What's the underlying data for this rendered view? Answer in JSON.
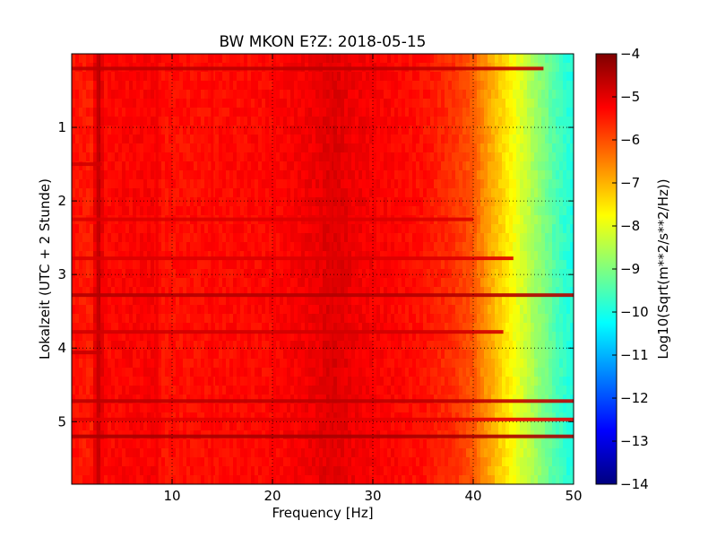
{
  "chart_data": {
    "type": "heatmap",
    "title": "BW MKON E?Z: 2018-05-15",
    "xlabel": "Frequency [Hz]",
    "ylabel": "Lokalzeit (UTC + 2 Stunde)",
    "colorbar_label": "Log10(Sqrt(m**2/s**2/Hz))",
    "xlim": [
      0,
      50
    ],
    "ylim": [
      5.85,
      0
    ],
    "x_ticks": [
      10,
      20,
      30,
      40,
      50
    ],
    "x_tick_labels": [
      "10",
      "20",
      "30",
      "40",
      "50"
    ],
    "y_ticks": [
      1,
      2,
      3,
      4,
      5
    ],
    "y_tick_labels": [
      "1",
      "2",
      "3",
      "4",
      "5"
    ],
    "colorbar_range": [
      -14,
      -4
    ],
    "colorbar_ticks": [
      -4,
      -5,
      -6,
      -7,
      -8,
      -9,
      -10,
      -11,
      -12,
      -13,
      -14
    ],
    "colorbar_tick_labels": [
      "−4",
      "−5",
      "−6",
      "−7",
      "−8",
      "−9",
      "−10",
      "−11",
      "−12",
      "−13",
      "−14"
    ],
    "colormap": "jet",
    "grid": true,
    "spectrum_profile": [
      [
        0,
        -5.4
      ],
      [
        2,
        -5.5
      ],
      [
        2.7,
        -4.6
      ],
      [
        3.2,
        -5.3
      ],
      [
        8.5,
        -5.2
      ],
      [
        9,
        -5.4
      ],
      [
        20,
        -5.3
      ],
      [
        24,
        -5.1
      ],
      [
        26,
        -4.9
      ],
      [
        28,
        -5.1
      ],
      [
        35,
        -5.4
      ],
      [
        38,
        -5.7
      ],
      [
        40,
        -6.1
      ],
      [
        41,
        -6.6
      ],
      [
        42,
        -7.0
      ],
      [
        43.5,
        -7.6
      ],
      [
        45,
        -8.2
      ],
      [
        47,
        -9.0
      ],
      [
        48.5,
        -9.6
      ],
      [
        50,
        -10.0
      ]
    ],
    "vertical_bands": [
      {
        "frequency": 2.6,
        "level": -4.7
      },
      {
        "frequency": 8.5,
        "level": -5.1
      },
      {
        "frequency": 14,
        "level": -5.2
      },
      {
        "frequency": 20.2,
        "level": -5.2
      },
      {
        "frequency": 25.8,
        "level": -5.0
      }
    ],
    "horizontal_bands": [
      {
        "time": 0.2,
        "level": -4.6,
        "fmax": 47
      },
      {
        "time": 1.5,
        "level": -4.8,
        "fmax": 3
      },
      {
        "time": 2.25,
        "level": -4.9,
        "fmax": 40
      },
      {
        "time": 2.78,
        "level": -4.9,
        "fmax": 44
      },
      {
        "time": 3.28,
        "level": -4.5,
        "fmax": 50
      },
      {
        "time": 3.78,
        "level": -4.8,
        "fmax": 43
      },
      {
        "time": 4.06,
        "level": -4.7,
        "fmax": 3
      },
      {
        "time": 4.72,
        "level": -4.6,
        "fmax": 50
      },
      {
        "time": 4.97,
        "level": -5.0,
        "fmax": 50
      },
      {
        "time": 5.2,
        "level": -4.4,
        "fmax": 50
      }
    ]
  }
}
